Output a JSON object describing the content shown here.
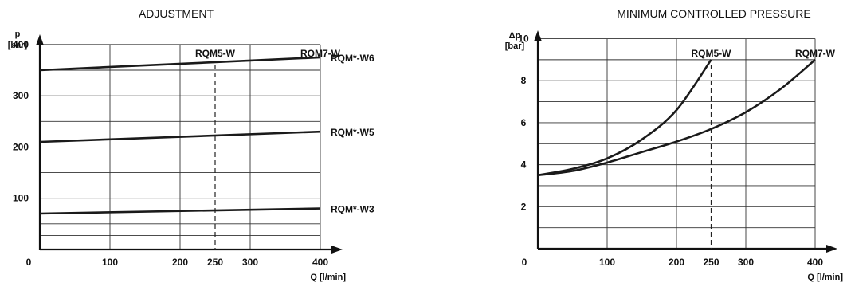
{
  "chart_data": [
    {
      "type": "line",
      "title": "ADJUSTMENT",
      "xlabel": "Q [l/min]",
      "ylabel": "p\n[bar]",
      "xlim": [
        0,
        400
      ],
      "ylim": [
        0,
        420
      ],
      "x_ticks": [
        0,
        100,
        200,
        250,
        300,
        400
      ],
      "y_ticks": [
        100,
        200,
        300,
        400
      ],
      "origin_label": "0",
      "grid": true,
      "markers": [
        {
          "label": "RQM5-W",
          "x": 250
        },
        {
          "label": "RQM7-W",
          "x": 400
        }
      ],
      "series": [
        {
          "name": "RQM*-W6",
          "x": [
            0,
            400
          ],
          "y": [
            350,
            375
          ]
        },
        {
          "name": "RQM*-W5",
          "x": [
            0,
            400
          ],
          "y": [
            210,
            230
          ]
        },
        {
          "name": "RQM*-W3",
          "x": [
            0,
            400
          ],
          "y": [
            70,
            80
          ]
        }
      ]
    },
    {
      "type": "line",
      "title": "MINIMUM CONTROLLED PRESSURE",
      "xlabel": "Q [l/min]",
      "ylabel": "Δp\n[bar]",
      "xlim": [
        0,
        400
      ],
      "ylim": [
        0,
        10
      ],
      "x_ticks": [
        0,
        100,
        200,
        250,
        300,
        400
      ],
      "y_ticks": [
        2,
        4,
        6,
        8,
        10
      ],
      "origin_label": "0",
      "grid": true,
      "markers": [
        {
          "label": "RQM5-W",
          "x": 250
        },
        {
          "label": "RQM7-W",
          "x": 400
        }
      ],
      "series": [
        {
          "label": "RQM5-W",
          "x": [
            0,
            50,
            100,
            150,
            200,
            250
          ],
          "y": [
            3.5,
            3.8,
            4.3,
            5.2,
            6.6,
            9.0
          ]
        },
        {
          "label": "RQM7-W",
          "x": [
            0,
            50,
            100,
            150,
            200,
            250,
            300,
            350,
            400
          ],
          "y": [
            3.5,
            3.7,
            4.1,
            4.6,
            5.1,
            5.7,
            6.5,
            7.6,
            9.0
          ]
        }
      ]
    }
  ]
}
